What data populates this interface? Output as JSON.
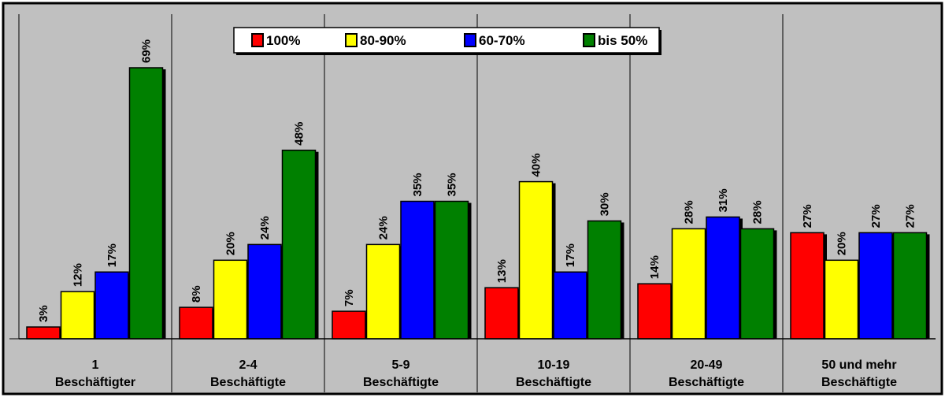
{
  "chart_data": {
    "type": "bar",
    "title": "",
    "xlabel": "",
    "ylabel": "",
    "ylim": [
      0,
      75
    ],
    "grid": false,
    "legend_position": "top-center",
    "categories": [
      [
        "1",
        "Beschäftigter"
      ],
      [
        "2-4",
        "Beschäftigte"
      ],
      [
        "5-9",
        "Beschäftigte"
      ],
      [
        "10-19",
        "Beschäftigte"
      ],
      [
        "20-49",
        "Beschäftigte"
      ],
      [
        "50 und mehr",
        "Beschäftigte"
      ]
    ],
    "series": [
      {
        "name": "100%",
        "color": "#ff0000",
        "values": [
          3,
          8,
          7,
          13,
          14,
          27
        ]
      },
      {
        "name": "80-90%",
        "color": "#ffff00",
        "values": [
          12,
          20,
          24,
          40,
          28,
          20
        ]
      },
      {
        "name": "60-70%",
        "color": "#0000ff",
        "values": [
          17,
          24,
          35,
          17,
          31,
          27
        ]
      },
      {
        "name": "bis 50%",
        "color": "#008000",
        "values": [
          69,
          48,
          35,
          30,
          28,
          27
        ]
      }
    ],
    "value_suffix": "%",
    "colors": {
      "plot_background": "#c0c0c0",
      "page_background": "#ffffff",
      "frame": "#000000"
    }
  }
}
